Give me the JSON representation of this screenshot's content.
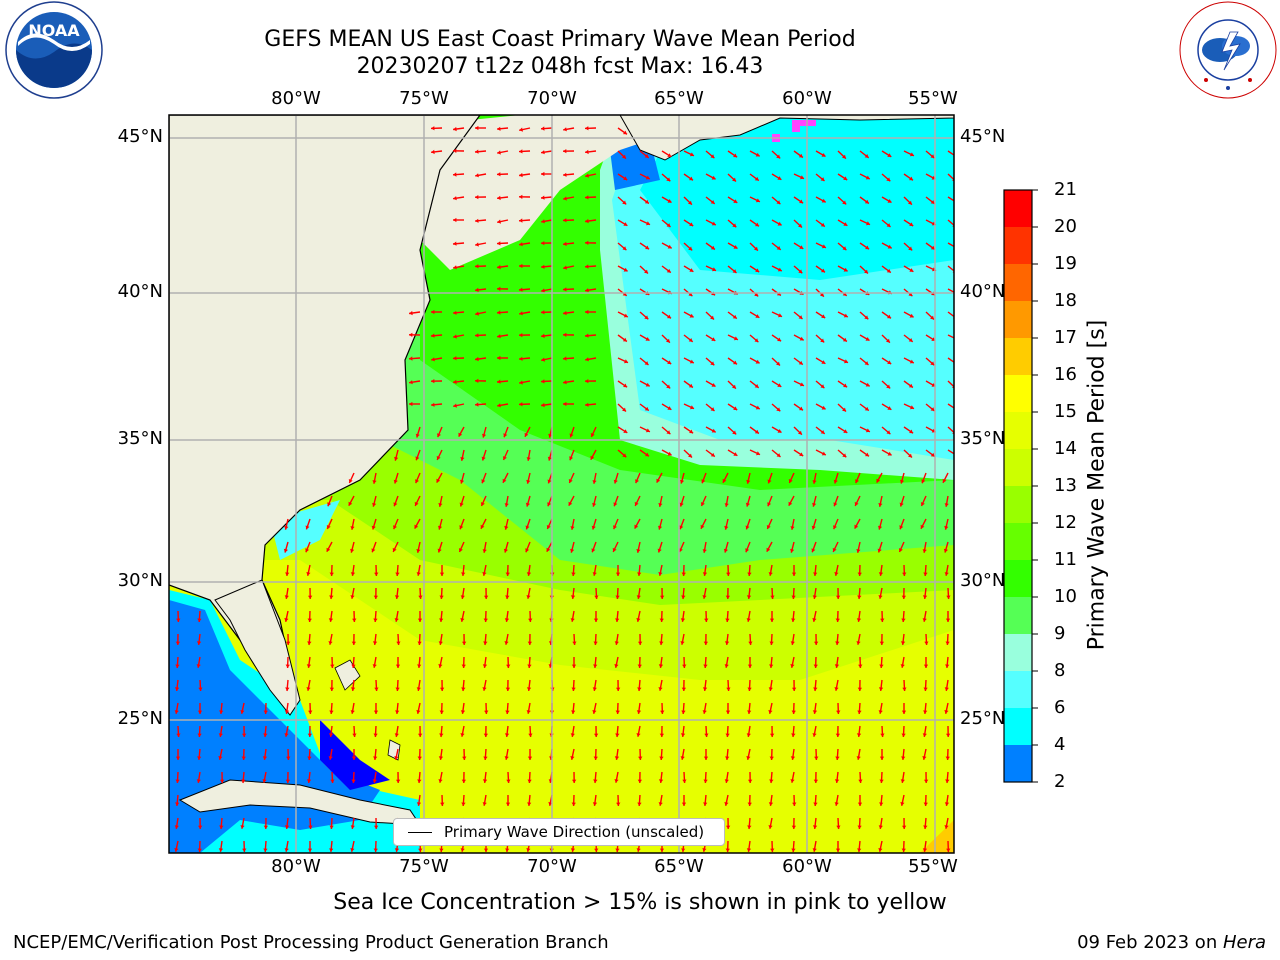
{
  "header": {
    "title_line1": "GEFS MEAN US East Coast Primary Wave Mean Period",
    "title_line2": "20230207 t12z 048h fcst   Max: 16.43"
  },
  "axes": {
    "lon_labels": [
      "80°W",
      "75°W",
      "70°W",
      "65°W",
      "60°W",
      "55°W"
    ],
    "lat_labels": [
      "45°N",
      "40°N",
      "35°N",
      "30°N",
      "25°N"
    ]
  },
  "colorbar": {
    "label": "Primary Wave Mean Period [s]",
    "ticks": [
      "21",
      "20",
      "19",
      "18",
      "17",
      "16",
      "15",
      "14",
      "13",
      "12",
      "11",
      "10",
      "9",
      "8",
      "6",
      "4",
      "2"
    ],
    "colors": [
      "#ff0000",
      "#ff3300",
      "#ff6600",
      "#ff9900",
      "#ffcc00",
      "#ffff00",
      "#e6ff00",
      "#ccff00",
      "#99ff00",
      "#66ff00",
      "#33ff00",
      "#55ff55",
      "#99ffdd",
      "#55ffff",
      "#00ffff",
      "#0080ff",
      "#0000ff"
    ]
  },
  "legend": {
    "text": "Primary Wave Direction (unscaled)"
  },
  "subtitle": "Sea Ice Concentration > 15% is shown in pink to yellow",
  "footer": {
    "left": "NCEP/EMC/Verification Post Processing Product Generation Branch",
    "date": "09 Feb 2023 on ",
    "machine": "Hera"
  },
  "colors": {
    "land": "#efefdf",
    "grid": "#b0b0b0",
    "arrow": "#ff0000"
  },
  "logos": [
    "noaa-logo",
    "nws-logo"
  ]
}
